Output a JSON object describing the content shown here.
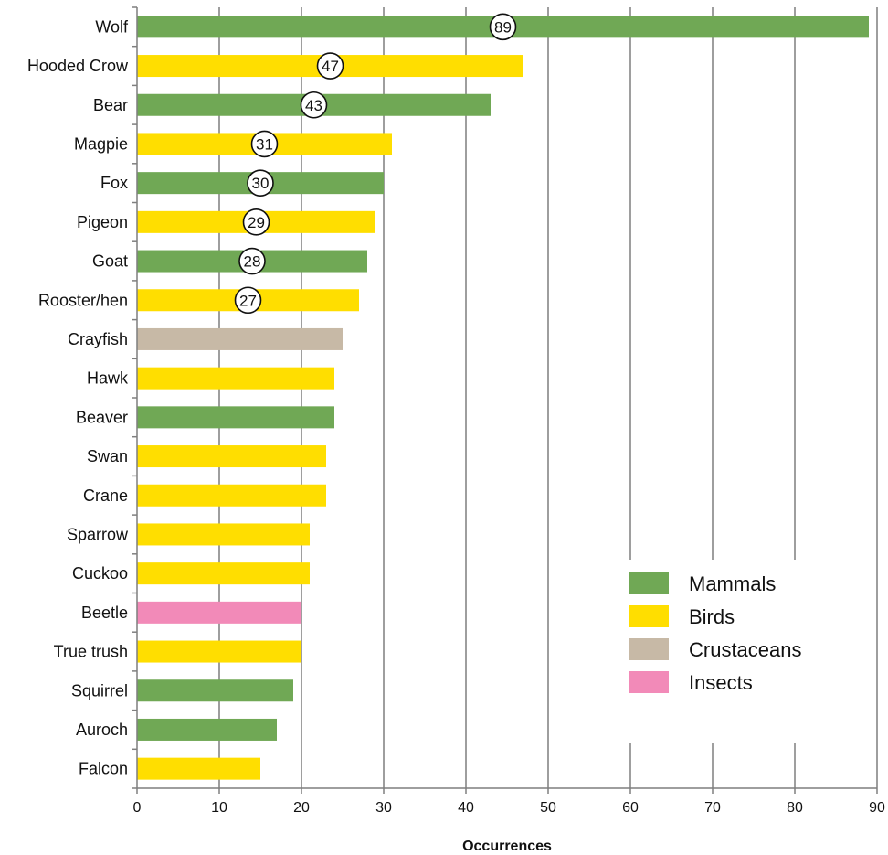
{
  "chart_data": {
    "type": "bar",
    "orientation": "horizontal",
    "title": "",
    "xlabel": "Occurrences",
    "ylabel": "",
    "xlim": [
      0,
      90
    ],
    "xticks": [
      0,
      10,
      20,
      30,
      40,
      50,
      60,
      70,
      80,
      90
    ],
    "grid": "vertical",
    "legend_position": "bottom-right",
    "groups": [
      {
        "name": "Mammals",
        "color": "#70a855"
      },
      {
        "name": "Birds",
        "color": "#ffde00"
      },
      {
        "name": "Crustaceans",
        "color": "#c7b9a6"
      },
      {
        "name": "Insects",
        "color": "#f28ab8"
      }
    ],
    "bars": [
      {
        "label": "Wolf",
        "value": 89,
        "group": "Mammals",
        "badge": "89"
      },
      {
        "label": "Hooded Crow",
        "value": 47,
        "group": "Birds",
        "badge": "47"
      },
      {
        "label": "Bear",
        "value": 43,
        "group": "Mammals",
        "badge": "43"
      },
      {
        "label": "Magpie",
        "value": 31,
        "group": "Birds",
        "badge": "31"
      },
      {
        "label": "Fox",
        "value": 30,
        "group": "Mammals",
        "badge": "30"
      },
      {
        "label": "Pigeon",
        "value": 29,
        "group": "Birds",
        "badge": "29"
      },
      {
        "label": "Goat",
        "value": 28,
        "group": "Mammals",
        "badge": "28"
      },
      {
        "label": "Rooster/hen",
        "value": 27,
        "group": "Birds",
        "badge": "27"
      },
      {
        "label": "Crayfish",
        "value": 25,
        "group": "Crustaceans",
        "badge": ""
      },
      {
        "label": "Hawk",
        "value": 24,
        "group": "Birds",
        "badge": ""
      },
      {
        "label": "Beaver",
        "value": 24,
        "group": "Mammals",
        "badge": ""
      },
      {
        "label": "Swan",
        "value": 23,
        "group": "Birds",
        "badge": ""
      },
      {
        "label": "Crane",
        "value": 23,
        "group": "Birds",
        "badge": ""
      },
      {
        "label": "Sparrow",
        "value": 21,
        "group": "Birds",
        "badge": ""
      },
      {
        "label": "Cuckoo",
        "value": 21,
        "group": "Birds",
        "badge": ""
      },
      {
        "label": "Beetle",
        "value": 20,
        "group": "Insects",
        "badge": ""
      },
      {
        "label": "True trush",
        "value": 20,
        "group": "Birds",
        "badge": ""
      },
      {
        "label": "Squirrel",
        "value": 19,
        "group": "Mammals",
        "badge": ""
      },
      {
        "label": "Auroch",
        "value": 17,
        "group": "Mammals",
        "badge": ""
      },
      {
        "label": "Falcon",
        "value": 15,
        "group": "Birds",
        "badge": ""
      }
    ]
  }
}
